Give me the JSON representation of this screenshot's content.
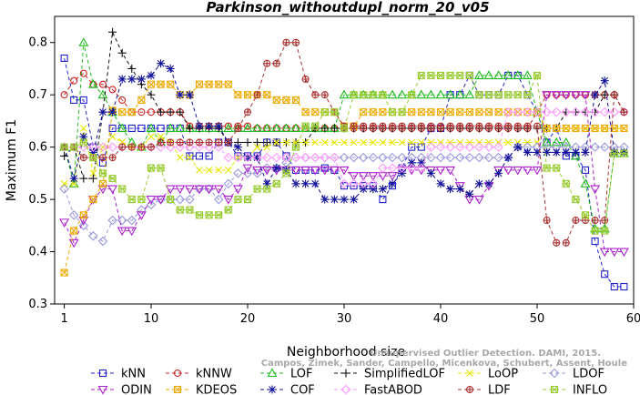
{
  "chart_data": {
    "type": "line",
    "title": "Parkinson_withoutdupl_norm_20_v05",
    "xlabel": "Neighborhood size",
    "ylabel": "Maximum F1",
    "xlim": [
      0,
      60
    ],
    "ylim": [
      0.3,
      0.85
    ],
    "xticks": [
      1,
      10,
      20,
      30,
      40,
      50,
      60
    ],
    "yticks": [
      0.3,
      0.4,
      0.5,
      0.6,
      0.7,
      0.8
    ],
    "grid": false,
    "legend_position": "bottom",
    "watermark": [
      "Campos, Zimek, Sander, Campello, Micenkova, Schubert, Assent, Houle",
      "Unsupervised Outlier Detection. DAMI, 2015."
    ],
    "x": [
      1,
      2,
      3,
      4,
      5,
      6,
      7,
      8,
      9,
      10,
      11,
      12,
      13,
      14,
      15,
      16,
      17,
      18,
      19,
      20,
      21,
      22,
      23,
      24,
      25,
      26,
      27,
      28,
      29,
      30,
      31,
      32,
      33,
      34,
      35,
      36,
      37,
      38,
      39,
      40,
      41,
      42,
      43,
      44,
      45,
      46,
      47,
      48,
      49,
      50,
      51,
      52,
      53,
      54,
      55,
      56,
      57,
      58,
      59
    ],
    "series": [
      {
        "name": "kNN",
        "color": "#2222cc",
        "marker": "square",
        "values": [
          0.77,
          0.69,
          0.69,
          0.6,
          0.57,
          0.636,
          0.636,
          0.636,
          0.636,
          0.636,
          0.636,
          0.636,
          0.636,
          0.583,
          0.583,
          0.583,
          0.609,
          0.609,
          0.583,
          0.583,
          0.583,
          0.609,
          0.609,
          0.583,
          0.556,
          0.556,
          0.556,
          0.56,
          0.556,
          0.526,
          0.526,
          0.526,
          0.526,
          0.5,
          0.526,
          0.56,
          0.6,
          0.6,
          0.636,
          0.636,
          0.7,
          0.7,
          0.737,
          0.7,
          0.7,
          0.7,
          0.737,
          0.737,
          0.7,
          0.667,
          0.609,
          0.636,
          0.583,
          0.583,
          0.556,
          0.42,
          0.357,
          0.333,
          0.333
        ]
      },
      {
        "name": "kNNW",
        "color": "#cc2222",
        "marker": "circle",
        "values": [
          0.7,
          0.727,
          0.741,
          0.72,
          0.72,
          0.71,
          0.69,
          0.667,
          0.667,
          0.667,
          0.667,
          0.667,
          0.667,
          0.64,
          0.64,
          0.64,
          0.64,
          0.64,
          0.64,
          0.64,
          0.636,
          0.636,
          0.636,
          0.636,
          0.636,
          0.636,
          0.636,
          0.636,
          0.636,
          0.636,
          0.636,
          0.636,
          0.636,
          0.636,
          0.636,
          0.636,
          0.636,
          0.636,
          0.636,
          0.636,
          0.636,
          0.636,
          0.636,
          0.636,
          0.636,
          0.636,
          0.636,
          0.636,
          0.636,
          0.667,
          0.7,
          0.7,
          0.7,
          0.7,
          0.7,
          0.7,
          0.7,
          0.7,
          0.667
        ]
      },
      {
        "name": "LOF",
        "color": "#22bb22",
        "marker": "triangle-up",
        "values": [
          0.6,
          0.53,
          0.8,
          0.72,
          0.7,
          0.667,
          0.636,
          0.609,
          0.6,
          0.636,
          0.609,
          0.636,
          0.636,
          0.636,
          0.636,
          0.636,
          0.636,
          0.636,
          0.636,
          0.636,
          0.636,
          0.636,
          0.636,
          0.636,
          0.636,
          0.636,
          0.636,
          0.636,
          0.636,
          0.7,
          0.7,
          0.7,
          0.7,
          0.7,
          0.7,
          0.7,
          0.7,
          0.7,
          0.7,
          0.7,
          0.7,
          0.7,
          0.7,
          0.737,
          0.737,
          0.737,
          0.737,
          0.737,
          0.737,
          0.667,
          0.609,
          0.609,
          0.609,
          0.583,
          0.53,
          0.444,
          0.444,
          0.588,
          0.588
        ]
      },
      {
        "name": "SimplifiedLOF",
        "color": "#111111",
        "marker": "plus",
        "values": [
          0.583,
          0.6,
          0.54,
          0.54,
          0.667,
          0.82,
          0.78,
          0.75,
          0.72,
          0.7,
          0.667,
          0.667,
          0.667,
          0.636,
          0.636,
          0.636,
          0.636,
          0.609,
          0.609,
          0.609,
          0.609,
          0.609,
          0.609,
          0.609,
          0.609,
          0.609,
          0.636,
          0.636,
          0.636,
          0.636,
          0.636,
          0.636,
          0.636,
          0.636,
          0.636,
          0.636,
          0.636,
          0.636,
          0.636,
          0.636,
          0.636,
          0.636,
          0.636,
          0.636,
          0.636,
          0.636,
          0.636,
          0.636,
          0.636,
          0.636,
          0.636,
          0.636,
          0.667,
          0.667,
          0.667,
          0.667,
          0.7,
          0.7,
          0.667
        ]
      },
      {
        "name": "LoOP",
        "color": "#e6e600",
        "marker": "x",
        "values": [
          0.53,
          0.53,
          0.636,
          0.55,
          0.6,
          0.62,
          0.61,
          0.6,
          0.6,
          0.62,
          0.62,
          0.609,
          0.58,
          0.58,
          0.556,
          0.556,
          0.556,
          0.556,
          0.58,
          0.58,
          0.6,
          0.6,
          0.609,
          0.609,
          0.609,
          0.609,
          0.609,
          0.609,
          0.609,
          0.609,
          0.609,
          0.609,
          0.609,
          0.609,
          0.609,
          0.609,
          0.609,
          0.609,
          0.609,
          0.609,
          0.609,
          0.609,
          0.609,
          0.609,
          0.609,
          0.609,
          0.609,
          0.609,
          0.609,
          0.609,
          0.636,
          0.636,
          0.636,
          0.636,
          0.636,
          0.636,
          0.636,
          0.636,
          0.636
        ]
      },
      {
        "name": "LDOF",
        "color": "#9999dd",
        "marker": "diamond",
        "values": [
          0.52,
          0.47,
          0.45,
          0.43,
          0.42,
          0.46,
          0.46,
          0.46,
          0.48,
          0.49,
          0.5,
          0.5,
          0.5,
          0.5,
          0.52,
          0.52,
          0.5,
          0.53,
          0.55,
          0.55,
          0.55,
          0.56,
          0.56,
          0.57,
          0.58,
          0.58,
          0.58,
          0.58,
          0.58,
          0.58,
          0.58,
          0.58,
          0.58,
          0.58,
          0.58,
          0.58,
          0.58,
          0.58,
          0.58,
          0.58,
          0.58,
          0.58,
          0.58,
          0.58,
          0.58,
          0.58,
          0.58,
          0.6,
          0.6,
          0.6,
          0.6,
          0.6,
          0.6,
          0.6,
          0.6,
          0.6,
          0.6,
          0.6,
          0.6
        ]
      },
      {
        "name": "ODIN",
        "color": "#aa22cc",
        "marker": "triangle-down",
        "values": [
          0.456,
          0.417,
          0.46,
          0.5,
          0.52,
          0.52,
          0.44,
          0.44,
          0.47,
          0.5,
          0.5,
          0.52,
          0.52,
          0.52,
          0.52,
          0.52,
          0.52,
          0.5,
          0.52,
          0.56,
          0.556,
          0.556,
          0.556,
          0.556,
          0.556,
          0.556,
          0.556,
          0.556,
          0.556,
          0.556,
          0.545,
          0.545,
          0.545,
          0.545,
          0.545,
          0.556,
          0.556,
          0.556,
          0.556,
          0.556,
          0.556,
          0.526,
          0.5,
          0.5,
          0.526,
          0.556,
          0.556,
          0.556,
          0.556,
          0.556,
          0.7,
          0.7,
          0.7,
          0.7,
          0.7,
          0.52,
          0.4,
          0.4,
          0.4
        ]
      },
      {
        "name": "KDEOS",
        "color": "#eeaa00",
        "marker": "square-x",
        "values": [
          0.36,
          0.44,
          0.47,
          0.5,
          0.53,
          0.67,
          0.667,
          0.667,
          0.69,
          0.72,
          0.72,
          0.72,
          0.7,
          0.7,
          0.72,
          0.72,
          0.72,
          0.72,
          0.7,
          0.7,
          0.7,
          0.7,
          0.69,
          0.69,
          0.69,
          0.667,
          0.667,
          0.667,
          0.667,
          0.64,
          0.64,
          0.667,
          0.667,
          0.667,
          0.667,
          0.667,
          0.667,
          0.667,
          0.667,
          0.667,
          0.667,
          0.667,
          0.667,
          0.667,
          0.667,
          0.667,
          0.667,
          0.667,
          0.667,
          0.667,
          0.636,
          0.636,
          0.636,
          0.636,
          0.636,
          0.636,
          0.636,
          0.636,
          0.636
        ]
      },
      {
        "name": "COF",
        "color": "#111199",
        "marker": "star",
        "values": [
          0.6,
          0.54,
          0.62,
          0.59,
          0.667,
          0.667,
          0.73,
          0.73,
          0.73,
          0.737,
          0.76,
          0.75,
          0.7,
          0.7,
          0.64,
          0.64,
          0.64,
          0.609,
          0.6,
          0.58,
          0.58,
          0.53,
          0.56,
          0.556,
          0.53,
          0.53,
          0.53,
          0.5,
          0.5,
          0.5,
          0.5,
          0.52,
          0.52,
          0.52,
          0.53,
          0.55,
          0.57,
          0.57,
          0.55,
          0.53,
          0.52,
          0.52,
          0.51,
          0.53,
          0.53,
          0.55,
          0.58,
          0.6,
          0.59,
          0.59,
          0.59,
          0.59,
          0.59,
          0.59,
          0.59,
          0.7,
          0.727,
          0.59,
          0.59
        ]
      },
      {
        "name": "FastABOD",
        "color": "#ff99ff",
        "marker": "diamond",
        "values": [
          0.6,
          0.6,
          0.6,
          0.6,
          0.6,
          0.6,
          0.6,
          0.6,
          0.6,
          0.6,
          0.6,
          0.6,
          0.6,
          0.6,
          0.6,
          0.6,
          0.6,
          0.58,
          0.58,
          0.58,
          0.58,
          0.58,
          0.58,
          0.58,
          0.58,
          0.58,
          0.58,
          0.58,
          0.58,
          0.53,
          0.53,
          0.53,
          0.53,
          0.56,
          0.56,
          0.56,
          0.56,
          0.56,
          0.6,
          0.6,
          0.6,
          0.6,
          0.6,
          0.6,
          0.6,
          0.6,
          0.667,
          0.667,
          0.667,
          0.667,
          0.667,
          0.667,
          0.667,
          0.667,
          0.667,
          0.667,
          0.667,
          0.667,
          0.667
        ]
      },
      {
        "name": "LDF",
        "color": "#aa3333",
        "marker": "circle-plus",
        "values": [
          0.6,
          0.6,
          0.58,
          0.58,
          0.58,
          0.58,
          0.6,
          0.6,
          0.6,
          0.6,
          0.609,
          0.609,
          0.609,
          0.609,
          0.609,
          0.609,
          0.609,
          0.609,
          0.636,
          0.667,
          0.7,
          0.76,
          0.76,
          0.8,
          0.8,
          0.73,
          0.7,
          0.7,
          0.667,
          0.64,
          0.64,
          0.64,
          0.64,
          0.64,
          0.64,
          0.64,
          0.64,
          0.64,
          0.64,
          0.64,
          0.64,
          0.64,
          0.64,
          0.64,
          0.64,
          0.64,
          0.64,
          0.64,
          0.64,
          0.64,
          0.46,
          0.417,
          0.417,
          0.46,
          0.46,
          0.46,
          0.46,
          0.7,
          0.667
        ]
      },
      {
        "name": "INFLO",
        "color": "#99cc33",
        "marker": "asterisk-box",
        "values": [
          0.6,
          0.6,
          0.609,
          0.58,
          0.55,
          0.54,
          0.52,
          0.5,
          0.5,
          0.56,
          0.56,
          0.5,
          0.48,
          0.48,
          0.47,
          0.47,
          0.47,
          0.48,
          0.5,
          0.5,
          0.52,
          0.52,
          0.53,
          0.55,
          0.6,
          0.64,
          0.64,
          0.667,
          0.667,
          0.636,
          0.7,
          0.7,
          0.7,
          0.7,
          0.667,
          0.667,
          0.7,
          0.737,
          0.737,
          0.737,
          0.737,
          0.737,
          0.737,
          0.7,
          0.7,
          0.7,
          0.7,
          0.7,
          0.7,
          0.737,
          0.56,
          0.56,
          0.53,
          0.5,
          0.47,
          0.44,
          0.44,
          0.588,
          0.588
        ]
      }
    ]
  }
}
